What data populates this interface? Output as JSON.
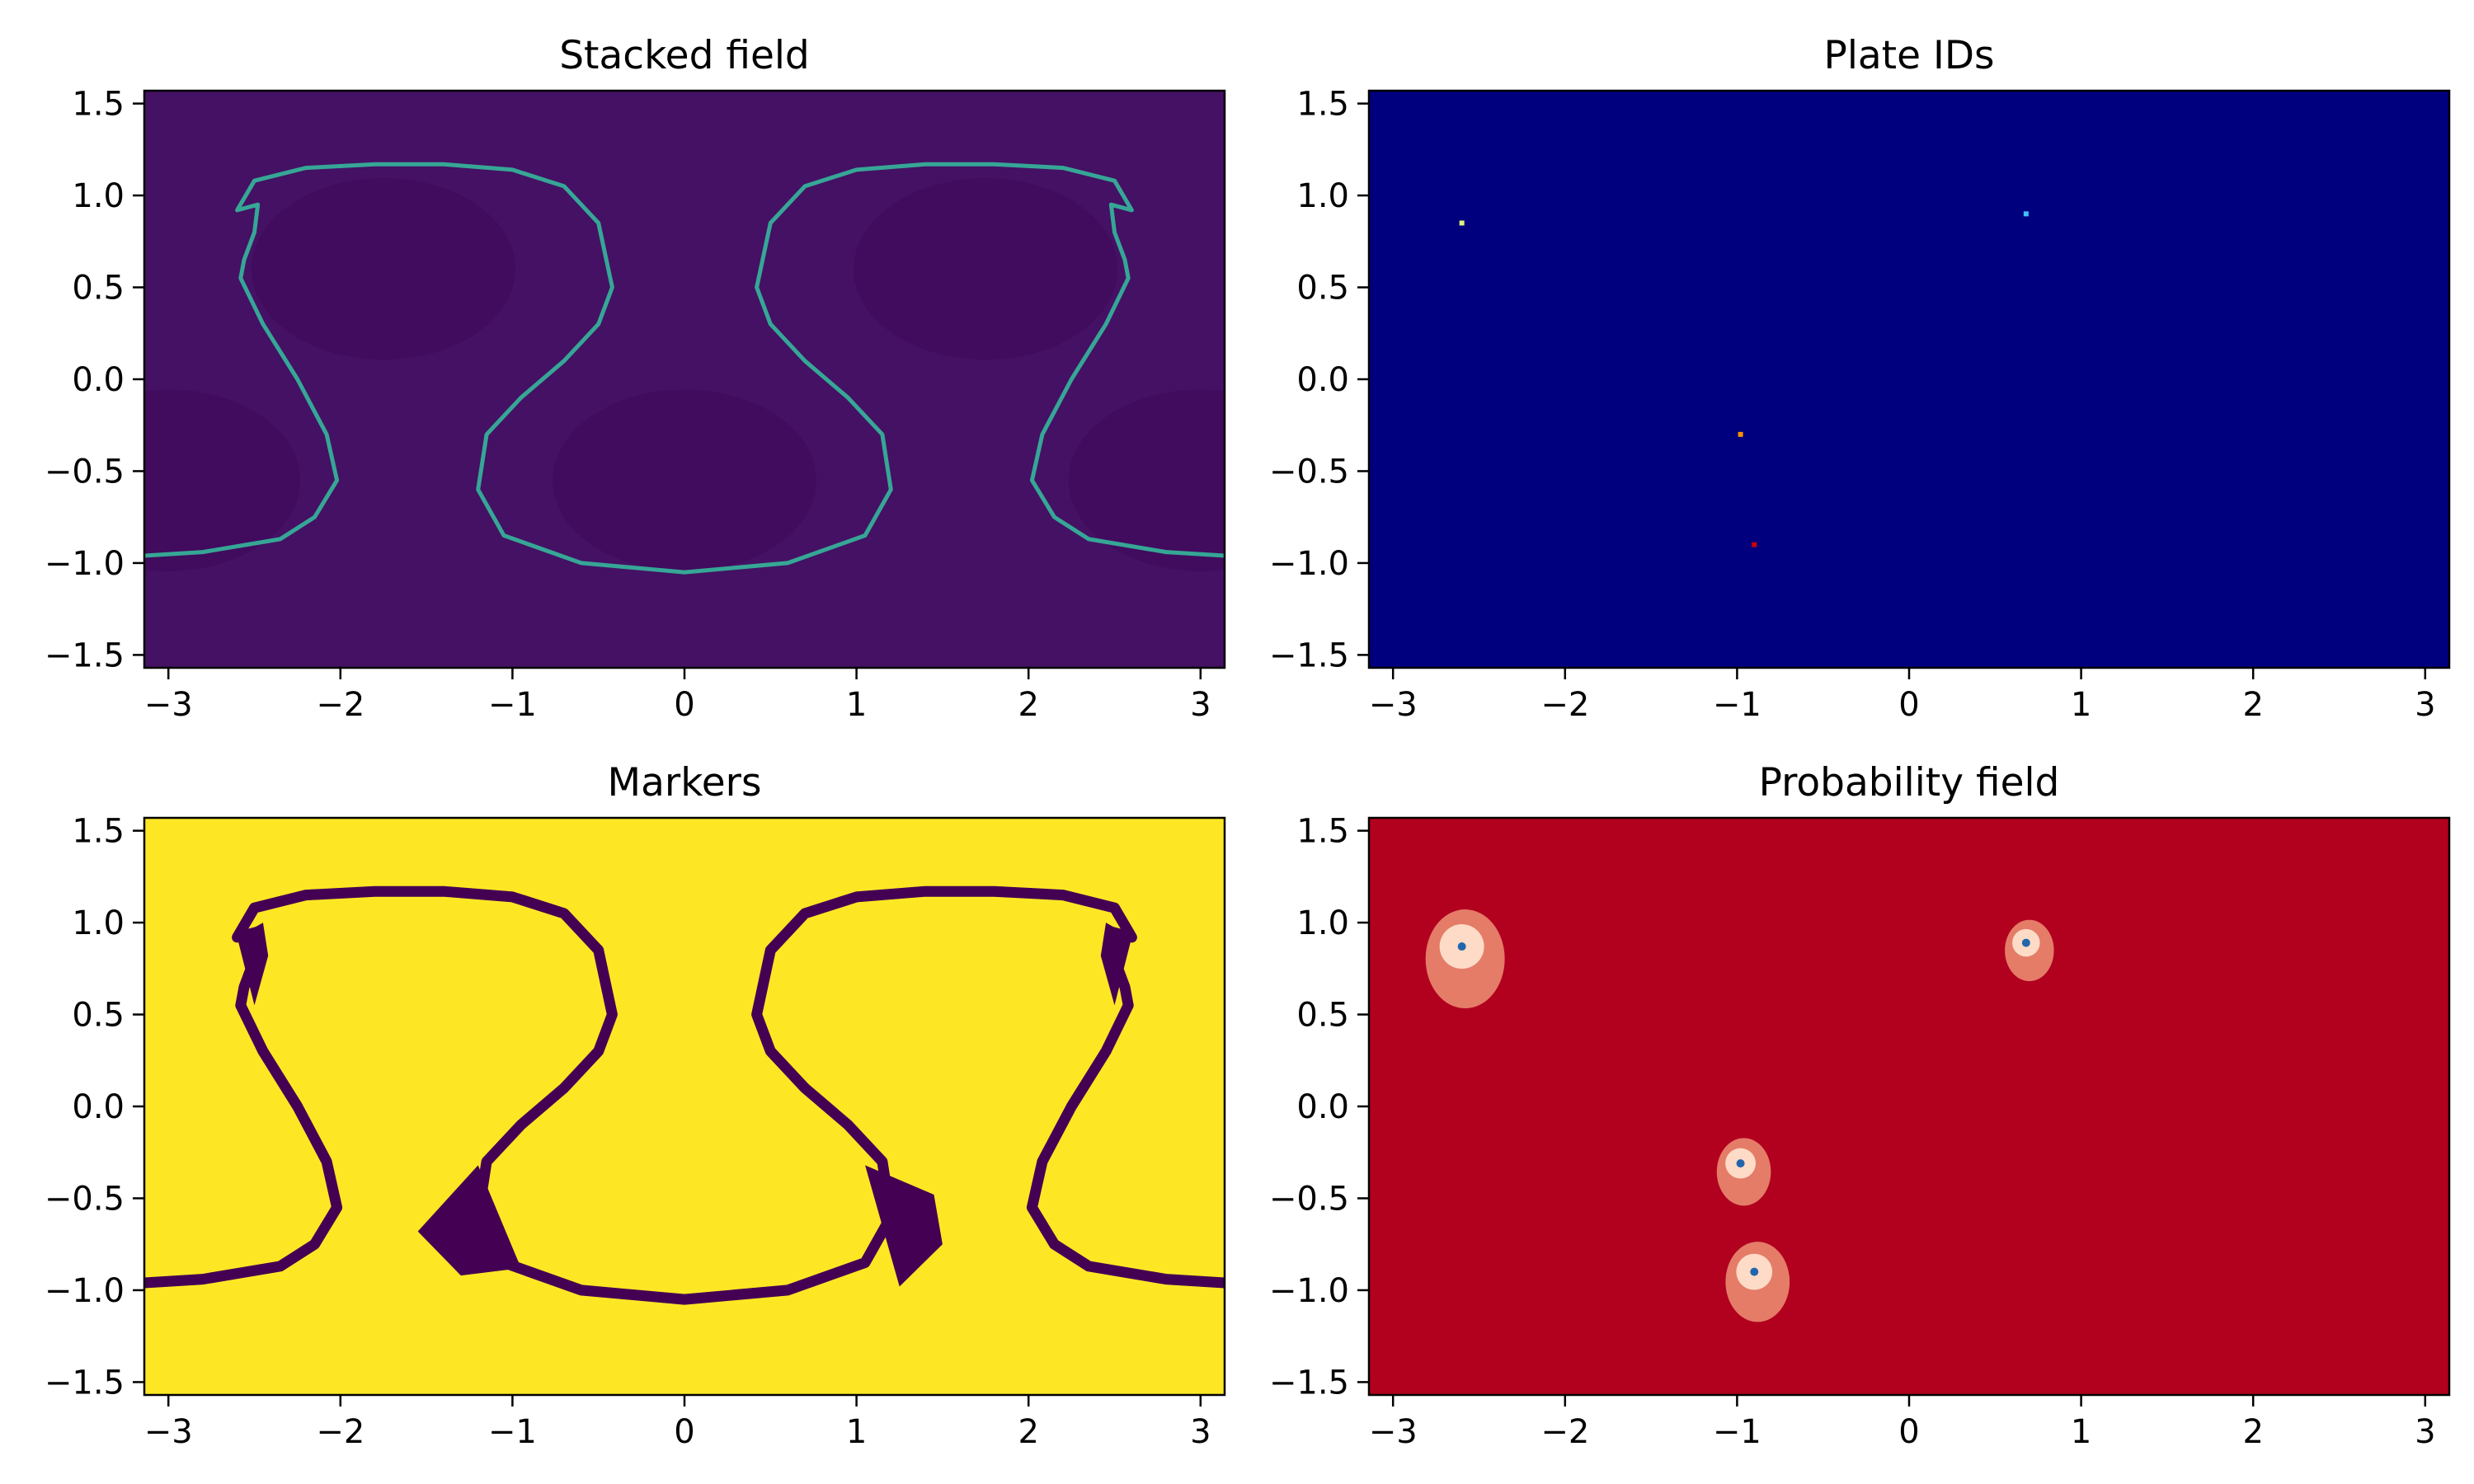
{
  "colors": {
    "viridis_bg": "#441164",
    "viridis_curve": "#35b79b",
    "viridis_yellow": "#fde725",
    "viridis_dark": "#440154",
    "jet_bg": "#00007f",
    "rdbu_bg": "#b2001f"
  },
  "chart_data": [
    {
      "type": "heatmap",
      "title": "Stacked field",
      "colormap": "viridis",
      "xlim": [
        -3.14,
        3.14
      ],
      "ylim": [
        -1.57,
        1.57
      ],
      "xticks": [
        -3,
        -2,
        -1,
        0,
        1,
        2,
        3
      ],
      "yticks": [
        -1.5,
        -1.0,
        -0.5,
        0.0,
        0.5,
        1.0,
        1.5
      ],
      "xticklabels": [
        "−3",
        "−2",
        "−1",
        "0",
        "1",
        "2",
        "3"
      ],
      "yticklabels": [
        "−1.5",
        "−1.0",
        "−0.5",
        "0.0",
        "0.5",
        "1.0",
        "1.5"
      ],
      "curves": [
        {
          "x": [
            -3.14,
            -2.8,
            -2.35,
            -2.15,
            -2.02,
            -2.08,
            -2.25,
            -2.45,
            -2.58,
            -2.56,
            -2.5,
            -2.48,
            -2.6,
            -2.5,
            -2.2,
            -1.8,
            -1.4,
            -1.0,
            -0.7,
            -0.5,
            -0.42,
            -0.5,
            -0.7,
            -0.95,
            -1.15,
            -1.2,
            -1.05,
            -0.6,
            0.0,
            0.6,
            1.05,
            1.2,
            1.15,
            0.95,
            0.7,
            0.5,
            0.42,
            0.5,
            0.7,
            1.0,
            1.4,
            1.8,
            2.2,
            2.5,
            2.6,
            2.48,
            2.5,
            2.56,
            2.58,
            2.45,
            2.25,
            2.08,
            2.02,
            2.15,
            2.35,
            2.8,
            3.14
          ],
          "y": [
            -0.96,
            -0.94,
            -0.87,
            -0.75,
            -0.55,
            -0.3,
            0.0,
            0.3,
            0.55,
            0.65,
            0.8,
            0.95,
            0.92,
            1.08,
            1.15,
            1.17,
            1.17,
            1.14,
            1.05,
            0.85,
            0.5,
            0.3,
            0.1,
            -0.1,
            -0.3,
            -0.6,
            -0.85,
            -1.0,
            -1.05,
            -1.0,
            -0.85,
            -0.6,
            -0.3,
            -0.1,
            0.1,
            0.3,
            0.5,
            0.85,
            1.05,
            1.14,
            1.17,
            1.17,
            1.15,
            1.08,
            0.92,
            0.95,
            0.8,
            0.65,
            0.55,
            0.3,
            0.0,
            -0.3,
            -0.55,
            -0.75,
            -0.87,
            -0.94,
            -0.96
          ]
        }
      ]
    },
    {
      "type": "heatmap",
      "title": "Plate IDs",
      "colormap": "jet",
      "xlim": [
        -3.14,
        3.14
      ],
      "ylim": [
        -1.57,
        1.57
      ],
      "xticks": [
        -3,
        -2,
        -1,
        0,
        1,
        2,
        3
      ],
      "yticks": [
        -1.5,
        -1.0,
        -0.5,
        0.0,
        0.5,
        1.0,
        1.5
      ],
      "xticklabels": [
        "−3",
        "−2",
        "−1",
        "0",
        "1",
        "2",
        "3"
      ],
      "yticklabels": [
        "−1.5",
        "−1.0",
        "−0.5",
        "0.0",
        "0.5",
        "1.0",
        "1.5"
      ],
      "points": [
        {
          "x": -2.6,
          "y": 0.85,
          "color": "#e0f080"
        },
        {
          "x": 0.68,
          "y": 0.9,
          "color": "#40c0ff"
        },
        {
          "x": -0.98,
          "y": -0.3,
          "color": "#ff9000"
        },
        {
          "x": -0.9,
          "y": -0.9,
          "color": "#d00000"
        }
      ]
    },
    {
      "type": "heatmap",
      "title": "Markers",
      "colormap": "viridis",
      "xlim": [
        -3.14,
        3.14
      ],
      "ylim": [
        -1.57,
        1.57
      ],
      "xticks": [
        -3,
        -2,
        -1,
        0,
        1,
        2,
        3
      ],
      "yticks": [
        -1.5,
        -1.0,
        -0.5,
        0.0,
        0.5,
        1.0,
        1.5
      ],
      "xticklabels": [
        "−3",
        "−2",
        "−1",
        "0",
        "1",
        "2",
        "3"
      ],
      "yticklabels": [
        "−1.5",
        "−1.0",
        "−0.5",
        "0.0",
        "0.5",
        "1.0",
        "1.5"
      ],
      "curves": [
        {
          "x": [
            -3.14,
            -2.8,
            -2.35,
            -2.15,
            -2.02,
            -2.08,
            -2.25,
            -2.45,
            -2.58,
            -2.56,
            -2.5,
            -2.48,
            -2.6,
            -2.5,
            -2.2,
            -1.8,
            -1.4,
            -1.0,
            -0.7,
            -0.5,
            -0.42,
            -0.5,
            -0.7,
            -0.95,
            -1.15,
            -1.2,
            -1.05,
            -0.6,
            0.0,
            0.6,
            1.05,
            1.2,
            1.15,
            0.95,
            0.7,
            0.5,
            0.42,
            0.5,
            0.7,
            1.0,
            1.4,
            1.8,
            2.2,
            2.5,
            2.6,
            2.48,
            2.5,
            2.56,
            2.58,
            2.45,
            2.25,
            2.08,
            2.02,
            2.15,
            2.35,
            2.8,
            3.14
          ],
          "y": [
            -0.96,
            -0.94,
            -0.87,
            -0.75,
            -0.55,
            -0.3,
            0.0,
            0.3,
            0.55,
            0.65,
            0.8,
            0.95,
            0.92,
            1.08,
            1.15,
            1.17,
            1.17,
            1.14,
            1.05,
            0.85,
            0.5,
            0.3,
            0.1,
            -0.1,
            -0.3,
            -0.6,
            -0.85,
            -1.0,
            -1.05,
            -1.0,
            -0.85,
            -0.6,
            -0.3,
            -0.1,
            0.1,
            0.3,
            0.5,
            0.85,
            1.05,
            1.14,
            1.17,
            1.17,
            1.15,
            1.08,
            0.92,
            0.95,
            0.8,
            0.65,
            0.55,
            0.3,
            0.0,
            -0.3,
            -0.55,
            -0.75,
            -0.87,
            -0.94,
            -0.96
          ]
        }
      ],
      "regions": [
        {
          "x": [
            -2.6,
            -2.45,
            -2.42,
            -2.5,
            -2.6
          ],
          "y": [
            0.92,
            1.0,
            0.82,
            0.55,
            0.92
          ]
        },
        {
          "x": [
            2.6,
            2.45,
            2.42,
            2.5,
            2.6
          ],
          "y": [
            0.92,
            1.0,
            0.82,
            0.55,
            0.92
          ]
        },
        {
          "x": [
            -1.2,
            -1.55,
            -1.3,
            -0.95,
            -1.2
          ],
          "y": [
            -0.32,
            -0.68,
            -0.92,
            -0.88,
            -0.32
          ]
        },
        {
          "x": [
            1.05,
            1.45,
            1.5,
            1.25,
            1.05
          ],
          "y": [
            -0.32,
            -0.48,
            -0.75,
            -0.98,
            -0.32
          ]
        }
      ]
    },
    {
      "type": "heatmap",
      "title": "Probability field",
      "colormap": "RdBu",
      "xlim": [
        -3.14,
        3.14
      ],
      "ylim": [
        -1.57,
        1.57
      ],
      "xticks": [
        -3,
        -2,
        -1,
        0,
        1,
        2,
        3
      ],
      "yticks": [
        -1.5,
        -1.0,
        -0.5,
        0.0,
        0.5,
        1.0,
        1.5
      ],
      "xticklabels": [
        "−3",
        "−2",
        "−1",
        "0",
        "1",
        "2",
        "3"
      ],
      "yticklabels": [
        "−1.5",
        "−1.0",
        "−0.5",
        "0.0",
        "0.5",
        "1.0",
        "1.5"
      ],
      "points": [
        {
          "x": -2.6,
          "y": 0.87,
          "value": 1.0
        },
        {
          "x": 0.68,
          "y": 0.89,
          "value": 0.4
        },
        {
          "x": -0.98,
          "y": -0.31,
          "value": 0.5
        },
        {
          "x": -0.9,
          "y": -0.9,
          "value": 0.7
        }
      ]
    }
  ]
}
